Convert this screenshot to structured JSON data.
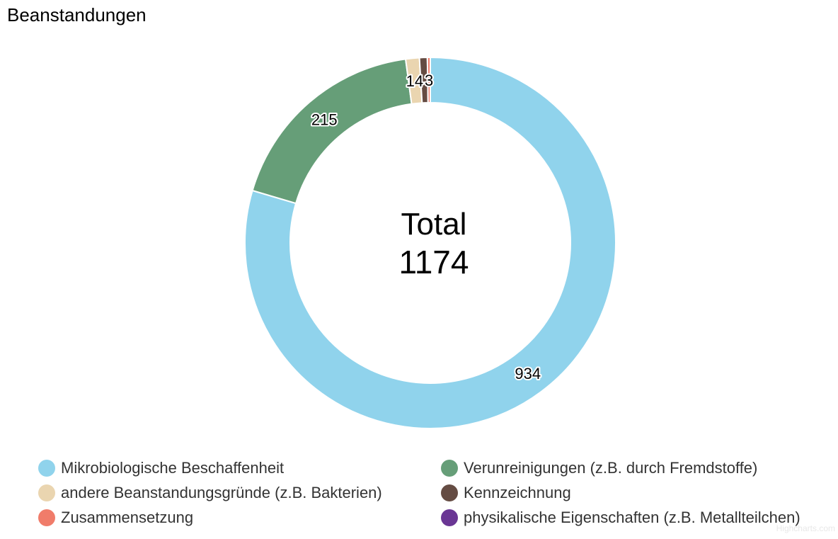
{
  "title": "Beanstandungen",
  "center": {
    "label": "Total",
    "value": "1174"
  },
  "credit": "Highcharts.com",
  "chart_data": {
    "type": "pie",
    "subtype": "donut",
    "title": "Beanstandungen",
    "total": 1174,
    "start_angle_deg": 0,
    "direction": "clockwise",
    "slices": [
      {
        "name": "Mikrobiologische Beschaffenheit",
        "value": 934,
        "color": "#90d3ec",
        "label": "934"
      },
      {
        "name": "Verunreinigungen (z.B. durch Fremdstoffe)",
        "value": 215,
        "color": "#669e78",
        "label": "215"
      },
      {
        "name": "andere Beanstandungsgründe (z.B. Bakterien)",
        "value": 14,
        "color": "#ead5b0",
        "label": "14"
      },
      {
        "name": "Kennzeichnung",
        "value": 8,
        "color": "#654c43",
        "label": ""
      },
      {
        "name": "Zusammensetzung",
        "value": 3,
        "color": "#f07c6a",
        "label": "3"
      },
      {
        "name": "physikalische Eigenschaften (z.B. Metallteilchen)",
        "value": 0,
        "color": "#6a3694",
        "label": ""
      }
    ]
  },
  "legend": {
    "items": [
      {
        "label": "Mikrobiologische Beschaffenheit",
        "color": "#90d3ec"
      },
      {
        "label": "Verunreinigungen (z.B. durch Fremdstoffe)",
        "color": "#669e78"
      },
      {
        "label": "andere Beanstandungsgründe (z.B. Bakterien)",
        "color": "#ead5b0"
      },
      {
        "label": "Kennzeichnung",
        "color": "#654c43"
      },
      {
        "label": "Zusammensetzung",
        "color": "#f07c6a"
      },
      {
        "label": "physikalische Eigenschaften (z.B. Metallteilchen)",
        "color": "#6a3694"
      }
    ]
  }
}
